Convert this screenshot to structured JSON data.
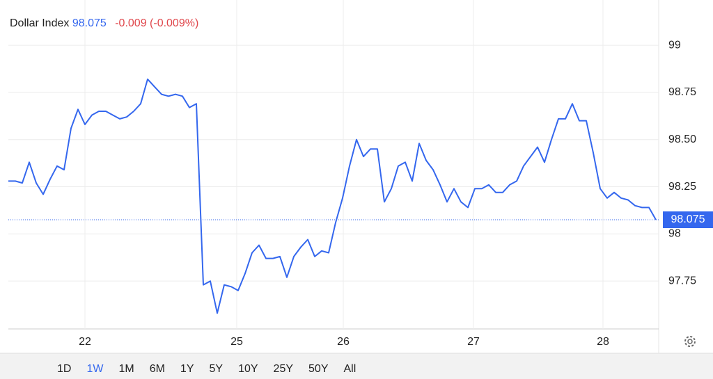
{
  "chart_data": {
    "type": "line",
    "title": "Dollar Index",
    "price": 98.075,
    "change": "-0.009 (-0.009%)",
    "color": "#3467ee",
    "change_color": "#e0474c",
    "grid": true,
    "x": [
      0,
      1,
      2,
      3,
      4,
      5,
      6,
      7,
      8,
      9,
      10,
      11,
      12,
      13,
      14,
      15,
      16,
      17,
      18,
      19,
      20,
      21,
      22,
      23,
      24,
      25,
      26,
      27,
      28,
      29,
      30,
      31,
      32,
      33,
      34,
      35,
      36,
      37,
      38,
      39,
      40,
      41,
      42,
      43,
      44,
      45,
      46,
      47,
      48,
      49,
      50,
      51,
      52,
      53,
      54,
      55,
      56,
      57,
      58,
      59,
      60,
      61,
      62,
      63,
      64,
      65,
      66,
      67,
      68,
      69,
      70,
      71,
      72,
      73,
      74,
      75,
      76,
      77,
      78,
      79,
      80,
      81,
      82,
      83,
      84,
      85,
      86,
      87,
      88,
      89,
      90,
      91,
      92,
      93
    ],
    "values": [
      98.28,
      98.28,
      98.27,
      98.38,
      98.27,
      98.21,
      98.29,
      98.36,
      98.34,
      98.56,
      98.66,
      98.58,
      98.63,
      98.65,
      98.65,
      98.63,
      98.61,
      98.62,
      98.65,
      98.69,
      98.82,
      98.78,
      98.74,
      98.73,
      98.74,
      98.73,
      98.67,
      98.69,
      97.73,
      97.75,
      97.58,
      97.73,
      97.72,
      97.7,
      97.79,
      97.9,
      97.94,
      97.87,
      97.87,
      97.88,
      97.77,
      97.88,
      97.93,
      97.97,
      97.88,
      97.91,
      97.9,
      98.06,
      98.19,
      98.36,
      98.5,
      98.41,
      98.45,
      98.45,
      98.17,
      98.24,
      98.36,
      98.38,
      98.28,
      98.48,
      98.39,
      98.34,
      98.26,
      98.17,
      98.24,
      98.17,
      98.14,
      98.24,
      98.24,
      98.26,
      98.22,
      98.22,
      98.26,
      98.28,
      98.36,
      98.41,
      98.46,
      98.38,
      98.5,
      98.61,
      98.61,
      98.69,
      98.6,
      98.6,
      98.43,
      98.24,
      98.19,
      98.22,
      98.19,
      98.18,
      98.15,
      98.14,
      98.14,
      98.075
    ],
    "xlim": [
      0,
      93
    ],
    "xticks": [
      {
        "value": 11,
        "label": "22"
      },
      {
        "value": 32.8,
        "label": "25"
      },
      {
        "value": 48.1,
        "label": "26"
      },
      {
        "value": 66.8,
        "label": "27"
      },
      {
        "value": 85.4,
        "label": "28"
      }
    ],
    "ylim": [
      97.5,
      99.24
    ],
    "yticks": [
      99,
      98.75,
      {
        "value": 98.5,
        "label": "98.50"
      },
      98.25,
      98,
      97.75
    ],
    "ranges": [
      "1D",
      "1W",
      "1M",
      "6M",
      "1Y",
      "5Y",
      "10Y",
      "25Y",
      "50Y",
      "All"
    ],
    "active_range": 1
  }
}
